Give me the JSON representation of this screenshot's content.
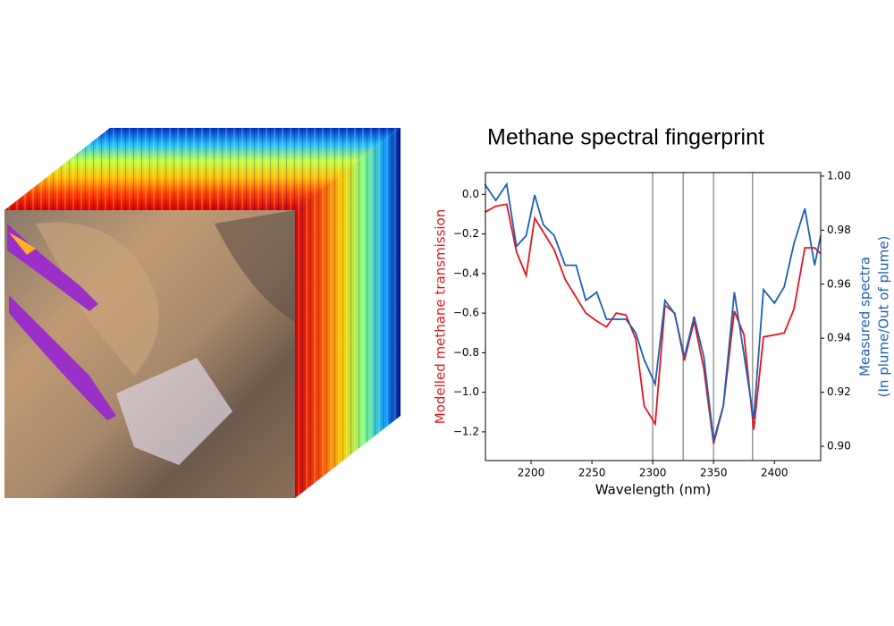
{
  "chart_data": {
    "type": "line",
    "title": "Methane spectral fingerprint",
    "xlabel": "Wavelength (nm)",
    "ylabel": "Modelled methane transmission",
    "y2label": [
      "Measured spectra",
      "(In plume/Out of plume)"
    ],
    "x": [
      2162,
      2171,
      2180,
      2188,
      2196,
      2203,
      2210,
      2219,
      2228,
      2237,
      2245,
      2254,
      2262,
      2270,
      2278,
      2286,
      2293,
      2302,
      2310,
      2318,
      2326,
      2334,
      2342,
      2350,
      2358,
      2367,
      2375,
      2383,
      2391,
      2400,
      2408,
      2416,
      2425,
      2433,
      2438
    ],
    "series": [
      {
        "name": "Modelled methane transmission",
        "color": "#e3161d",
        "axis": "y",
        "values": [
          -0.09,
          -0.06,
          -0.05,
          -0.29,
          -0.41,
          -0.12,
          -0.19,
          -0.28,
          -0.43,
          -0.52,
          -0.6,
          -0.64,
          -0.67,
          -0.6,
          -0.61,
          -0.73,
          -1.07,
          -1.16,
          -0.56,
          -0.6,
          -0.84,
          -0.64,
          -0.88,
          -1.26,
          -1.07,
          -0.59,
          -0.71,
          -1.19,
          -0.72,
          -0.71,
          -0.7,
          -0.58,
          -0.27,
          -0.27,
          -0.3
        ]
      },
      {
        "name": "Measured spectra",
        "color": "#1f5fb4",
        "axis": "y2",
        "values": [
          0.997,
          0.991,
          0.997,
          0.974,
          0.978,
          0.993,
          0.982,
          0.978,
          0.967,
          0.967,
          0.954,
          0.957,
          0.947,
          0.947,
          0.947,
          0.942,
          0.932,
          0.923,
          0.954,
          0.949,
          0.933,
          0.948,
          0.933,
          0.902,
          0.915,
          0.957,
          0.934,
          0.91,
          0.958,
          0.953,
          0.959,
          0.975,
          0.988,
          0.967,
          0.978
        ]
      }
    ],
    "vlines": [
      2300,
      2325,
      2350,
      2382
    ],
    "xlim": [
      2162.5,
      2438
    ],
    "xticks": [
      2200,
      2250,
      2300,
      2350,
      2400
    ],
    "ylim": [
      -1.345,
      0.11
    ],
    "yticks": [
      {
        "value": 0,
        "label": "0.0"
      },
      {
        "value": -0.2,
        "label": "−0.2"
      },
      {
        "value": -0.4,
        "label": "−0.4"
      },
      {
        "value": -0.6,
        "label": "−0.6"
      },
      {
        "value": -0.8,
        "label": "−0.8"
      },
      {
        "value": -1.0,
        "label": "−1.0"
      },
      {
        "value": -1.2,
        "label": "−1.2"
      }
    ],
    "y2lim": [
      0.8947,
      1.0013
    ],
    "y2ticks": [
      {
        "value": 0.9,
        "label": "0.90"
      },
      0.92,
      0.94,
      0.96,
      0.98,
      {
        "value": 1.0,
        "label": "1.00"
      }
    ]
  }
}
